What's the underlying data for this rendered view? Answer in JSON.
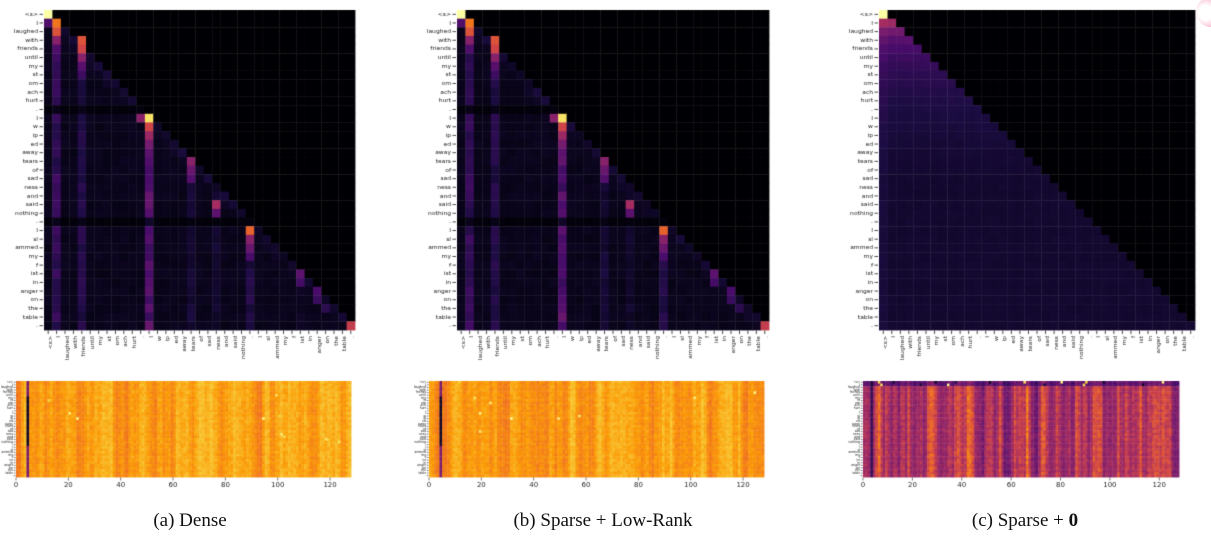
{
  "figure": {
    "captions": {
      "a": {
        "text": "(a) Dense",
        "bold": ""
      },
      "b": {
        "text": "(b) Sparse + Low-Rank",
        "bold": ""
      },
      "c": {
        "text": "(c) Sparse + ",
        "bold": "0"
      }
    }
  },
  "tokens": [
    "<s>",
    "I",
    "laughed",
    "with",
    "friends",
    "until",
    "my",
    "st",
    "om",
    "ach",
    "hurt",
    ".",
    "I",
    "w",
    "ip",
    "ed",
    "away",
    "tears",
    "of",
    "sad",
    "ness",
    "and",
    "said",
    "nothing",
    ".",
    "I",
    "sl",
    "ammed",
    "my",
    "f",
    "ist",
    "in",
    "anger",
    "on",
    "the",
    "table",
    "."
  ],
  "row_plot": {
    "xticks": [
      0,
      20,
      40,
      60,
      80,
      100,
      120
    ],
    "xrange": [
      0,
      128
    ],
    "rows": 37,
    "cols": 128
  },
  "colors": {
    "background": "#ffffff",
    "label": "#1c1c1c",
    "badge_pink": "#ee93b0",
    "colormap": "inferno",
    "colormap_stops": [
      [
        0,
        "#000004"
      ],
      [
        0.15,
        "#1b0c41"
      ],
      [
        0.3,
        "#4a0c6b"
      ],
      [
        0.45,
        "#781c6d"
      ],
      [
        0.6,
        "#a52c60"
      ],
      [
        0.7,
        "#cf4446"
      ],
      [
        0.8,
        "#ed6925"
      ],
      [
        0.88,
        "#fb9b06"
      ],
      [
        0.95,
        "#f7d03c"
      ],
      [
        1,
        "#fcffa4"
      ]
    ]
  },
  "chart_data": [
    {
      "id": "attention-a",
      "type": "heatmap",
      "panel": "a",
      "description": "Lower-triangular causal self-attention weights; same token list on x and y axes; bright attention sinks at sentence-initial tokens and on-diagonal blocks.",
      "axis_tokens": "tokens",
      "colormap": "inferno",
      "pattern": {
        "kind": "sparse-blocks",
        "seed": 7,
        "base": 0.045,
        "base_noise": 0.025,
        "diag_boost": 0.045,
        "stripes": [
          [
            1,
            0.22
          ],
          [
            4,
            0.17
          ],
          [
            12,
            0.32
          ],
          [
            17,
            0.12
          ],
          [
            20,
            0.1
          ],
          [
            24,
            0.16
          ],
          [
            30,
            0.07
          ]
        ],
        "dark_rows": [
          11,
          24
        ],
        "blocks": [
          [
            0,
            0,
            1.0
          ],
          [
            1,
            0,
            0.32
          ],
          [
            1,
            1,
            0.82
          ],
          [
            2,
            1,
            0.74
          ],
          [
            3,
            1,
            0.5
          ],
          [
            4,
            1,
            0.32
          ],
          [
            3,
            4,
            0.74
          ],
          [
            4,
            4,
            0.7
          ],
          [
            5,
            4,
            0.5
          ],
          [
            6,
            4,
            0.34
          ],
          [
            7,
            4,
            0.26
          ],
          [
            12,
            11,
            0.5
          ],
          [
            12,
            12,
            0.97
          ],
          [
            13,
            12,
            0.7
          ],
          [
            14,
            12,
            0.56
          ],
          [
            15,
            12,
            0.44
          ],
          [
            16,
            12,
            0.36
          ],
          [
            17,
            17,
            0.5
          ],
          [
            18,
            17,
            0.4
          ],
          [
            19,
            17,
            0.33
          ],
          [
            22,
            20,
            0.6
          ],
          [
            23,
            20,
            0.36
          ],
          [
            25,
            24,
            0.78
          ],
          [
            26,
            24,
            0.5
          ],
          [
            27,
            24,
            0.4
          ],
          [
            28,
            24,
            0.3
          ],
          [
            30,
            30,
            0.36
          ],
          [
            31,
            30,
            0.28
          ],
          [
            32,
            32,
            0.3
          ],
          [
            33,
            32,
            0.25
          ],
          [
            34,
            33,
            0.2
          ],
          [
            36,
            36,
            0.67
          ]
        ]
      }
    },
    {
      "id": "attention-b",
      "type": "heatmap",
      "panel": "b",
      "description": "Nearly identical attention pattern to Dense.",
      "axis_tokens": "tokens",
      "colormap": "inferno",
      "pattern": {
        "kind": "sparse-blocks",
        "seed": 13,
        "base": 0.045,
        "base_noise": 0.025,
        "diag_boost": 0.045,
        "stripes": [
          [
            1,
            0.22
          ],
          [
            4,
            0.17
          ],
          [
            12,
            0.32
          ],
          [
            17,
            0.12
          ],
          [
            20,
            0.1
          ],
          [
            24,
            0.16
          ],
          [
            30,
            0.07
          ]
        ],
        "dark_rows": [
          11,
          24
        ],
        "blocks": [
          [
            0,
            0,
            1.0
          ],
          [
            1,
            0,
            0.32
          ],
          [
            1,
            1,
            0.82
          ],
          [
            2,
            1,
            0.74
          ],
          [
            3,
            1,
            0.5
          ],
          [
            4,
            1,
            0.32
          ],
          [
            3,
            4,
            0.74
          ],
          [
            4,
            4,
            0.7
          ],
          [
            5,
            4,
            0.5
          ],
          [
            6,
            4,
            0.34
          ],
          [
            7,
            4,
            0.26
          ],
          [
            12,
            11,
            0.5
          ],
          [
            12,
            12,
            0.97
          ],
          [
            13,
            12,
            0.7
          ],
          [
            14,
            12,
            0.56
          ],
          [
            15,
            12,
            0.44
          ],
          [
            16,
            12,
            0.36
          ],
          [
            17,
            17,
            0.5
          ],
          [
            18,
            17,
            0.4
          ],
          [
            19,
            17,
            0.33
          ],
          [
            22,
            20,
            0.6
          ],
          [
            23,
            20,
            0.36
          ],
          [
            25,
            24,
            0.78
          ],
          [
            26,
            24,
            0.5
          ],
          [
            27,
            24,
            0.4
          ],
          [
            28,
            24,
            0.3
          ],
          [
            30,
            30,
            0.36
          ],
          [
            31,
            30,
            0.28
          ],
          [
            32,
            32,
            0.3
          ],
          [
            33,
            32,
            0.25
          ],
          [
            34,
            33,
            0.2
          ],
          [
            36,
            36,
            0.67
          ]
        ]
      }
    },
    {
      "id": "attention-c",
      "type": "heatmap",
      "panel": "c",
      "description": "Near-uniform attention per row decaying with row length (1/n); bright only at <s> row.",
      "axis_tokens": "tokens",
      "colormap": "inferno",
      "pattern": {
        "kind": "uniform-decay",
        "seed": 21,
        "scale": 0.95,
        "decay_pow": 0.75,
        "min": 0.1,
        "col0_boost": 0.03
      }
    },
    {
      "id": "rowplot-a",
      "type": "heatmap",
      "panel": "a",
      "description": "37 tokens x 128 dims; mostly high (orange-yellow) with a dark vertical line near dim 4 and sparse bright sparks.",
      "axis_tokens": "tokens",
      "colormap": "inferno",
      "pattern": {
        "kind": "rowplot",
        "seed": 7,
        "base": 0.88,
        "band_amp": 0.055,
        "cell_noise": 0.02,
        "clamp": [
          0.6,
          0.94
        ],
        "dark_col": {
          "col": 4,
          "val": 0.45,
          "deep": [
            6,
            24
          ],
          "deep_val": 0.08
        },
        "sparks": 10,
        "spark_rows": 26,
        "dark_sparks": 0,
        "top_dim": null
      }
    },
    {
      "id": "rowplot-b",
      "type": "heatmap",
      "panel": "b",
      "description": "Same as rowplot-a with minor noise differences.",
      "axis_tokens": "tokens",
      "colormap": "inferno",
      "pattern": {
        "kind": "rowplot",
        "seed": 13,
        "base": 0.88,
        "band_amp": 0.055,
        "cell_noise": 0.02,
        "clamp": [
          0.6,
          0.94
        ],
        "dark_col": {
          "col": 4,
          "val": 0.45,
          "deep": [
            6,
            24
          ],
          "deep_val": 0.08
        },
        "sparks": 10,
        "spark_rows": 26,
        "dark_sparks": 0,
        "top_dim": null
      }
    },
    {
      "id": "rowplot-c",
      "type": "heatmap",
      "panel": "c",
      "description": "Red-purple base with strong vertical orange/dark streaks; top two rows darker with bright yellow sparks.",
      "axis_tokens": "tokens",
      "colormap": "inferno",
      "pattern": {
        "kind": "rowplot",
        "seed": 21,
        "base": 0.62,
        "band_amp": 0.23,
        "cell_noise": 0.05,
        "clamp": [
          0.3,
          0.86
        ],
        "dark_col": {
          "col": 3,
          "val": 0.28,
          "deep": [
            0,
            36
          ],
          "deep_val": 0.22
        },
        "sparks": 9,
        "spark_rows": 2,
        "dark_sparks": 8,
        "top_dim": {
          "rows": 2,
          "factor": 0.62
        }
      }
    }
  ]
}
